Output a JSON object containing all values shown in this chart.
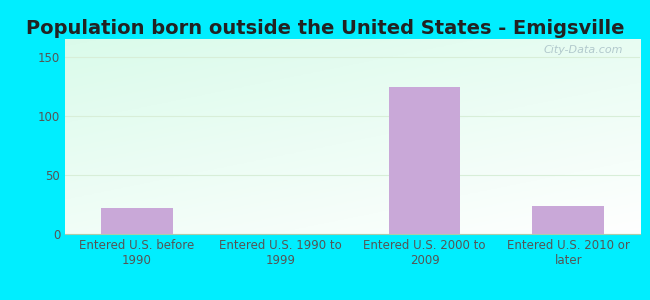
{
  "title": "Population born outside the United States - Emigsville",
  "categories": [
    "Entered U.S. before\n1990",
    "Entered U.S. 1990 to\n1999",
    "Entered U.S. 2000 to\n2009",
    "Entered U.S. 2010 or\nlater"
  ],
  "values": [
    22,
    0,
    124,
    24
  ],
  "bar_color": "#c9a8d8",
  "background_color": "#00eeff",
  "yticks": [
    0,
    50,
    100,
    150
  ],
  "ylim": [
    0,
    165
  ],
  "title_fontsize": 14,
  "tick_fontsize": 8.5,
  "watermark": "City-Data.com",
  "grid_color": "#d8eed8",
  "plot_bg_topleft": "#cceedd",
  "plot_bg_right": "#f0fff0"
}
